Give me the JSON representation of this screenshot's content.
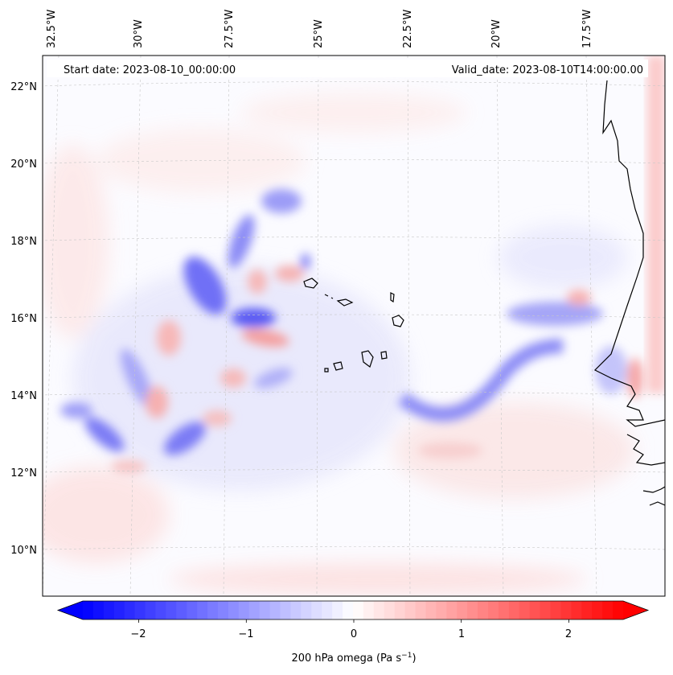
{
  "header": {
    "start_date": "Start date: 2023-08-10_00:00:00",
    "valid_date": "Valid_date: 2023-08-10T14:00:00.00"
  },
  "longitude_labels": [
    "32.5°W",
    "30°W",
    "27.5°W",
    "25°W",
    "22.5°W",
    "20°W",
    "17.5°W"
  ],
  "latitude_labels": [
    "22°N",
    "20°N",
    "18°N",
    "16°N",
    "14°N",
    "12°N",
    "10°N"
  ],
  "colorbar": {
    "title": "200 hPa omega (Pa s",
    "title_sup": "−1",
    "title_end": ")",
    "tick_labels": [
      "−2",
      "−1",
      "0",
      "1",
      "2"
    ],
    "ticks": [
      -2,
      -1,
      0,
      1,
      2
    ],
    "range": [
      -2.6,
      2.6
    ],
    "low_color": "#0000ff",
    "mid_color": "#ffffff",
    "high_color": "#ff0000"
  },
  "map": {
    "region": "Cape Verde / West Africa coast",
    "coastline_color": "#000000",
    "gridline_color": "#c8c8c8"
  }
}
